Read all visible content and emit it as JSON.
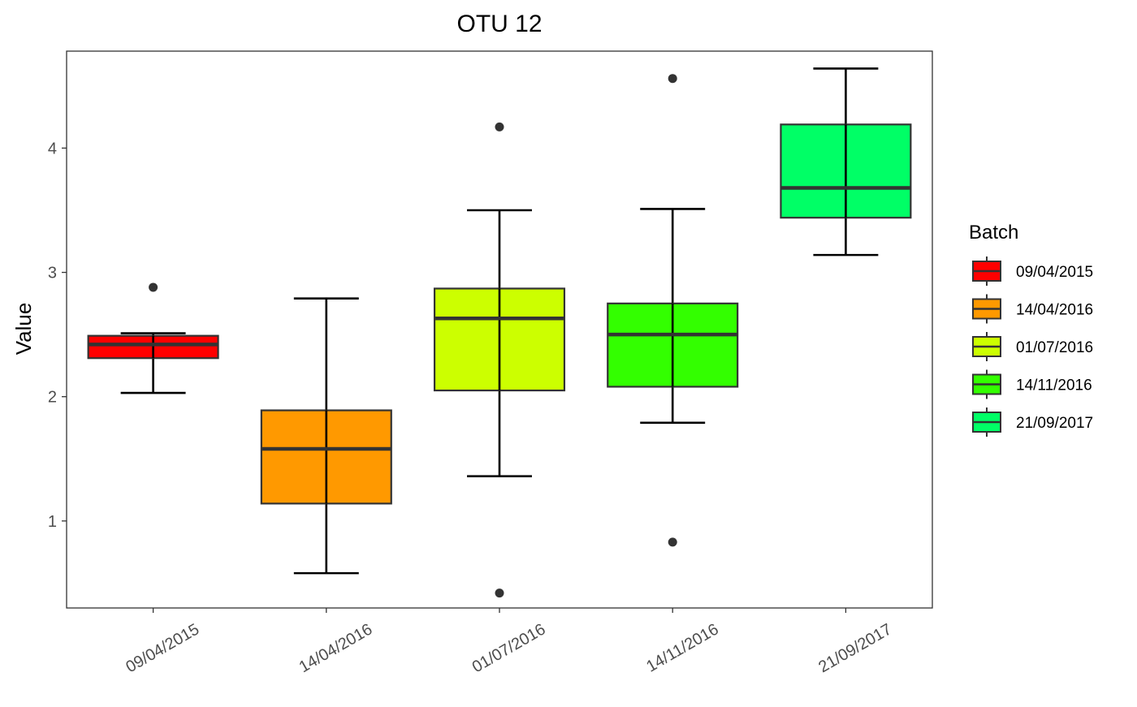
{
  "chart_data": {
    "type": "boxplot",
    "title": "OTU 12",
    "xlabel": "",
    "ylabel": "Value",
    "ylim": [
      0.3,
      4.78
    ],
    "y_ticks": [
      1,
      2,
      3,
      4
    ],
    "grid": false,
    "legend": {
      "title": "Batch",
      "placement": "right"
    },
    "boxes": [
      {
        "label": "09/04/2015",
        "color": "#FF0000",
        "whisker_low": 2.03,
        "q1": 2.31,
        "median": 2.42,
        "q3": 2.49,
        "whisker_high": 2.51,
        "outliers": [
          2.88
        ]
      },
      {
        "label": "14/04/2016",
        "color": "#FF9900",
        "whisker_low": 0.58,
        "q1": 1.14,
        "median": 1.58,
        "q3": 1.89,
        "whisker_high": 2.79,
        "outliers": []
      },
      {
        "label": "01/07/2016",
        "color": "#CCFF00",
        "whisker_low": 1.36,
        "q1": 2.05,
        "median": 2.63,
        "q3": 2.87,
        "whisker_high": 3.5,
        "outliers": [
          0.42,
          4.17
        ]
      },
      {
        "label": "14/11/2016",
        "color": "#33FF00",
        "whisker_low": 1.79,
        "q1": 2.08,
        "median": 2.5,
        "q3": 2.75,
        "whisker_high": 3.51,
        "outliers": [
          0.83,
          4.56
        ]
      },
      {
        "label": "21/09/2017",
        "color": "#00FF66",
        "whisker_low": 3.14,
        "q1": 3.44,
        "median": 3.68,
        "q3": 4.19,
        "whisker_high": 4.64,
        "outliers": []
      }
    ]
  }
}
